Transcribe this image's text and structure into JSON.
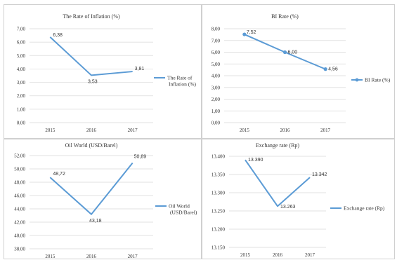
{
  "colors": {
    "line": "#5b9bd5",
    "grid": "#d9d9d9",
    "text": "#333333"
  },
  "chart_data": [
    {
      "type": "line",
      "title": "The Rate of Inflation (%)",
      "categories": [
        "2015",
        "2016",
        "2017"
      ],
      "series": [
        {
          "name": "The Rate of Inflation (%)",
          "values": [
            6.38,
            3.53,
            3.81
          ]
        }
      ],
      "value_labels": [
        "6,38",
        "3,53",
        "3,81"
      ],
      "yticks": [
        "0,00",
        "1,00",
        "2,00",
        "3,00",
        "4,00",
        "5,00",
        "6,00",
        "7,00"
      ],
      "ylim": [
        0,
        7
      ],
      "markers": false,
      "legend": "right",
      "grid": true
    },
    {
      "type": "line",
      "title": "BI Rate (%)",
      "categories": [
        "2015",
        "2016",
        "2017"
      ],
      "series": [
        {
          "name": "BI Rate (%)",
          "values": [
            7.52,
            6.0,
            4.56
          ]
        }
      ],
      "value_labels": [
        "7,52",
        "6,00",
        "4,56"
      ],
      "yticks": [
        "0,00",
        "1,00",
        "2,00",
        "3,00",
        "4,00",
        "5,00",
        "6,00",
        "7,00",
        "8,00"
      ],
      "ylim": [
        0,
        8
      ],
      "markers": true,
      "legend": "right",
      "grid": true
    },
    {
      "type": "line",
      "title": "Oil World (USD/Barel)",
      "categories": [
        "2015",
        "2016",
        "2017"
      ],
      "series": [
        {
          "name": "Oil World (USD/Barel)",
          "values": [
            48.72,
            43.18,
            50.89
          ]
        }
      ],
      "value_labels": [
        "48,72",
        "43,18",
        "50,89"
      ],
      "yticks": [
        "38,00",
        "40,00",
        "42,00",
        "44,00",
        "46,00",
        "48,00",
        "50,00",
        "52,00"
      ],
      "ylim": [
        38,
        52
      ],
      "markers": false,
      "legend": "right",
      "grid": true
    },
    {
      "type": "line",
      "title": "Exchange rate (Rp)",
      "categories": [
        "2015",
        "2016",
        "2017"
      ],
      "series": [
        {
          "name": "Exchange rate (Rp)",
          "values": [
            13390,
            13263,
            13342
          ]
        }
      ],
      "value_labels": [
        "13.390",
        "13.263",
        "13.342"
      ],
      "yticks": [
        "13.150",
        "13.200",
        "13.250",
        "13.300",
        "13.350",
        "13.400"
      ],
      "ylim": [
        13150,
        13400
      ],
      "markers": false,
      "legend": "right",
      "grid": true
    }
  ]
}
